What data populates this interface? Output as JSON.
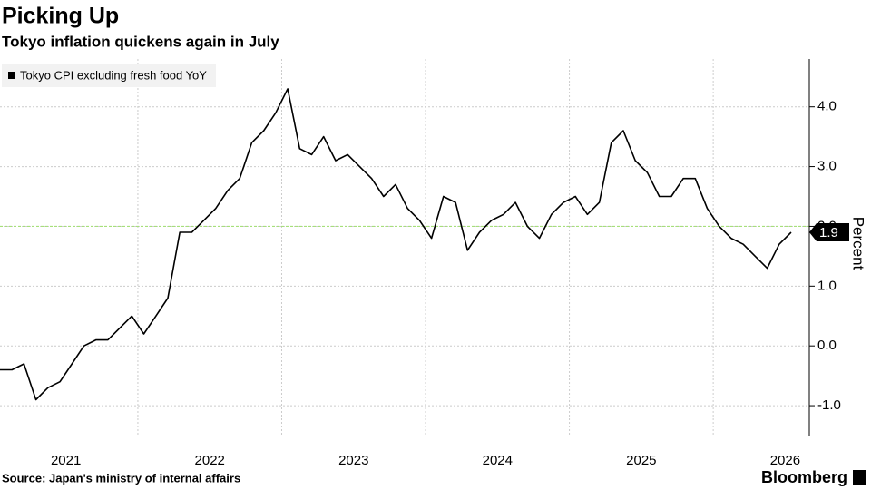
{
  "chart_data": {
    "type": "line",
    "title": "Picking Up",
    "subtitle": "Tokyo inflation quickens again in July",
    "source": "Source: Japan's ministry of internal affairs",
    "brand": "Bloomberg",
    "y_axis_label": "Percent",
    "categories": [
      null,
      null,
      null,
      null,
      null,
      null,
      "2021",
      null,
      null,
      null,
      null,
      null,
      null,
      null,
      null,
      null,
      null,
      null,
      "2022",
      null,
      null,
      null,
      null,
      null,
      null,
      null,
      null,
      null,
      null,
      null,
      "2023",
      null,
      null,
      null,
      null,
      null,
      null,
      null,
      null,
      null,
      null,
      null,
      "2024",
      null,
      null,
      null,
      null,
      null,
      null,
      null,
      null,
      null,
      null,
      null,
      "2025",
      null,
      null,
      null,
      null,
      null,
      null,
      null,
      null,
      null,
      null,
      null,
      "2026"
    ],
    "series": [
      {
        "name": "Tokyo CPI excluding fresh food YoY",
        "color": "#000000",
        "values": [
          -0.4,
          -0.4,
          -0.3,
          -0.9,
          -0.7,
          -0.6,
          -0.3,
          0.0,
          0.1,
          0.1,
          0.3,
          0.5,
          0.2,
          0.5,
          0.8,
          1.9,
          1.9,
          2.1,
          2.3,
          2.6,
          2.8,
          3.4,
          3.6,
          3.9,
          4.3,
          3.3,
          3.2,
          3.5,
          3.1,
          3.2,
          3.0,
          2.8,
          2.5,
          2.7,
          2.3,
          2.1,
          1.8,
          2.5,
          2.4,
          1.6,
          1.9,
          2.1,
          2.2,
          2.4,
          2.0,
          1.8,
          2.2,
          2.4,
          2.5,
          2.2,
          2.4,
          3.4,
          3.6,
          3.1,
          2.9,
          2.5,
          2.5,
          2.8,
          2.8,
          2.3,
          2.0,
          1.8,
          1.7,
          1.5,
          1.3,
          1.7,
          1.9
        ]
      }
    ],
    "reference_line": {
      "value": 2,
      "color": "#a6e07a"
    },
    "ylim": [
      -1.5,
      4.8
    ],
    "yticks": [
      {
        "value": -1,
        "label": "-1.0"
      },
      {
        "value": 0,
        "label": "0.0"
      },
      {
        "value": 1,
        "label": "1.0"
      },
      {
        "value": 2,
        "label": "2.0"
      },
      {
        "value": 3,
        "label": "3.0"
      },
      {
        "value": 4,
        "label": "4.0"
      }
    ],
    "grid": true,
    "legend": "top-left"
  }
}
